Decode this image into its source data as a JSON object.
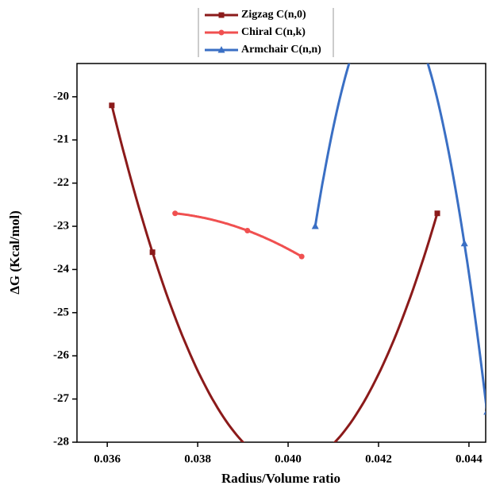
{
  "chart_data": {
    "type": "line",
    "x_label": "Radius/Volume ratio",
    "y_label": "ΔG (Kcal/mol)",
    "series": [
      {
        "name": "Zigzag C(n,0)",
        "color": "#8b1a1a",
        "marker": "square",
        "x": [
          0.0361,
          0.037,
          0.0433
        ],
        "values": [
          -20.2,
          -23.6,
          -22.7
        ]
      },
      {
        "name": "Chiral C(n,k)",
        "color": "#f05050",
        "marker": "circle",
        "x": [
          0.0375,
          0.0391,
          0.0403
        ],
        "values": [
          -22.7,
          -23.1,
          -23.7
        ]
      },
      {
        "name": "Armchair C(n,n)",
        "color": "#3a6fc4",
        "marker": "triangle",
        "x": [
          0.0406,
          0.0439,
          0.0444
        ],
        "values": [
          -23.0,
          -23.4,
          -27.3
        ]
      }
    ],
    "xlim": [
      0.03533,
      0.04437
    ],
    "xticks": [
      0.036,
      0.038,
      {
        "value": 0.04,
        "label": "0.040"
      },
      0.042,
      0.044
    ],
    "ylim": [
      -28,
      -19.23
    ],
    "yticks": [
      -20,
      -21,
      -22,
      -23,
      -24,
      -25,
      -26,
      -27,
      -28
    ]
  }
}
